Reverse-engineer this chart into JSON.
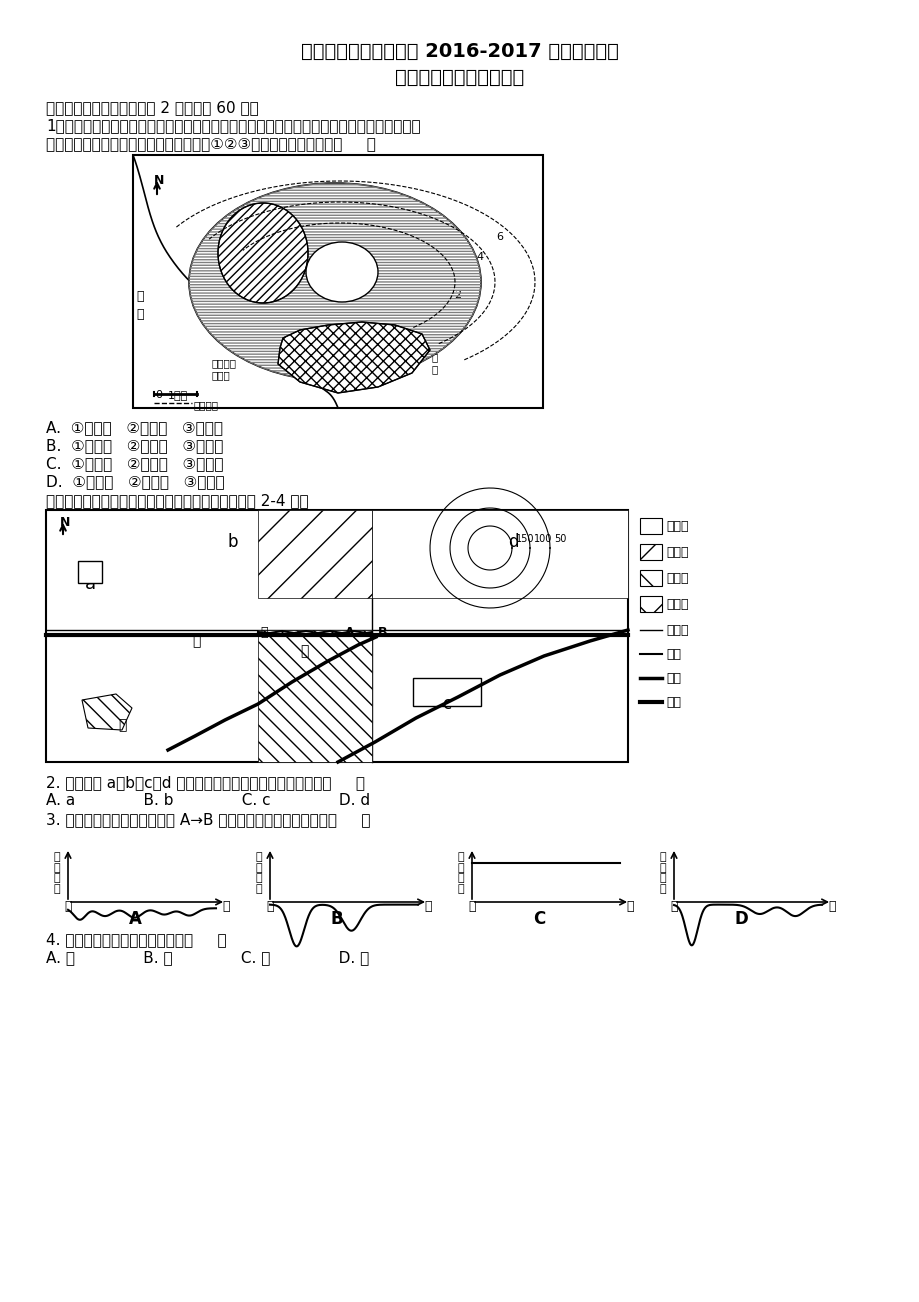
{
  "title1": "华美实验学校高一年级 2016-2017 学年度下学期",
  "title2": "第二次月考考试地理试卷",
  "section1": "一、单项选择题。（每小题 2 分，共计 60 分）",
  "q1_line1": "1、如图为欧洲西部某沿海城镇功能分区图，图中的虚线为等高线（单位：米）。据此回答：",
  "q1_line2": "从服务功能、环境保护等角度考虑，图中①②③功能分区最合理的是（     ）",
  "q1_A": "A.  ①商业区   ②工业区   ③住宅区",
  "q1_B": "B.  ①商业区   ②住宅区   ③工业区",
  "q1_C": "C.  ①工业区   ②住宅区   ③商业区",
  "q1_D": "D.  ①住宅区   ②商业区   ③工业区",
  "q2_intro": "读某城市规划简图，该市常年盛行东北风。据图完成 2-4 题。",
  "q2": "2. 该城市的 a、b、c、d 四个地块中适宜建设高级住宅区的是（     ）",
  "q2_opts": "A. a              B. b              C. c              D. d",
  "q3": "3. 下列图中能够反映上图中沿 A→B 虚线地租水平变化特征的是（     ）",
  "q4": "4. 图中建电子仪器厂最合适处是（     ）",
  "q4_opts": "A. 丁              B. 丙              C. 乙              D. 甲"
}
